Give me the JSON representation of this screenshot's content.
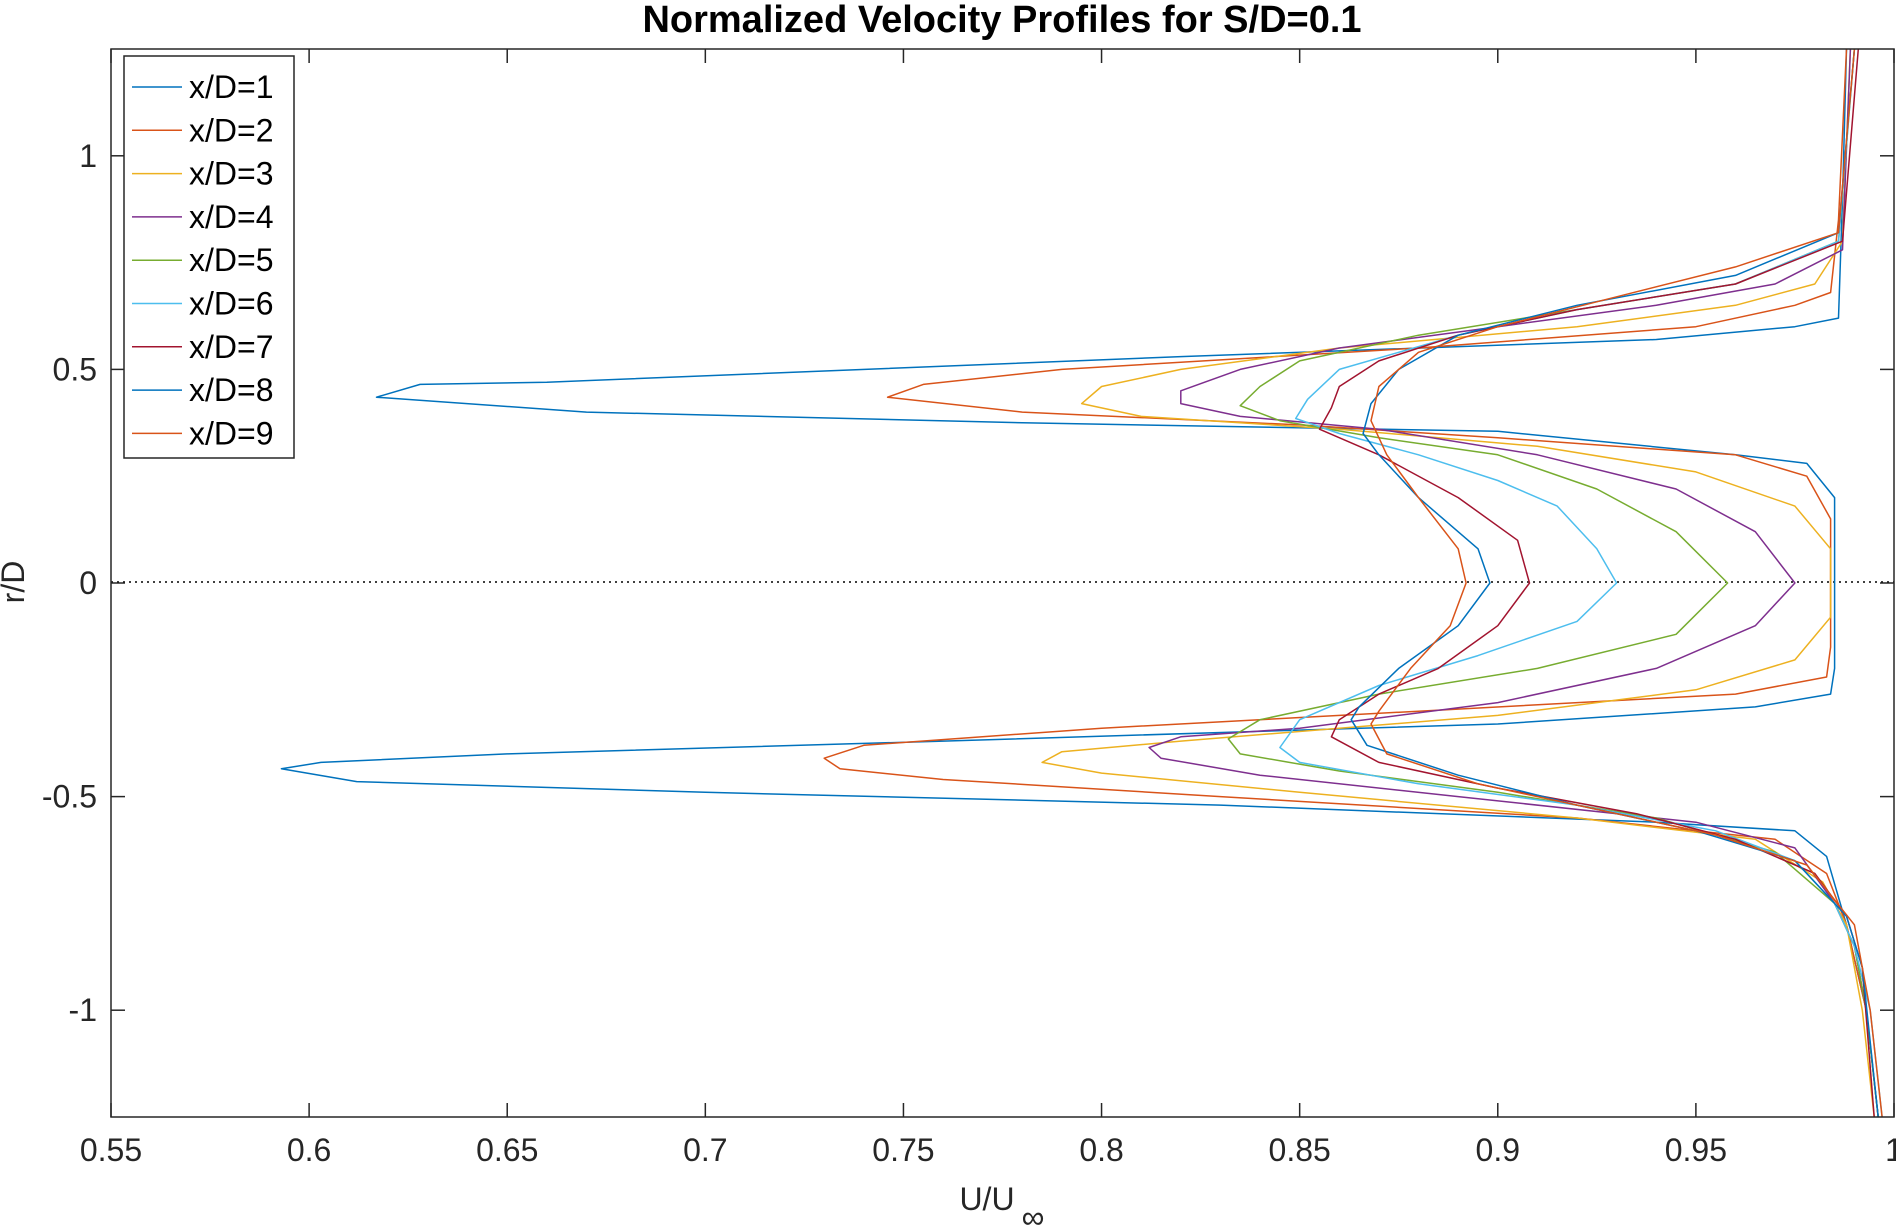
{
  "chart_data": {
    "type": "line",
    "title": "Normalized Velocity Profiles for S/D=0.1",
    "xlabel": "U/U",
    "xlabel_subscript": "∞",
    "ylabel": "r/D",
    "xlim": [
      0.55,
      1.0
    ],
    "ylim": [
      -1.25,
      1.25
    ],
    "xticks": [
      0.55,
      0.6,
      0.65,
      0.7,
      0.75,
      0.8,
      0.85,
      0.9,
      0.95,
      1
    ],
    "xtick_labels": [
      "0.55",
      "0.6",
      "0.65",
      "0.7",
      "0.75",
      "0.8",
      "0.85",
      "0.9",
      "0.95",
      "1"
    ],
    "yticks": [
      1,
      0.5,
      0,
      -0.5,
      -1
    ],
    "ytick_labels": [
      "1",
      "0.5",
      "0",
      "-0.5",
      "-1"
    ],
    "grid": false,
    "legend_position": "top-left",
    "reference_line": {
      "y": 0,
      "style": "dotted"
    },
    "series": [
      {
        "name": "x/D=1",
        "color": "#0072BD",
        "points": [
          [
            0.988,
            1.25
          ],
          [
            0.987,
            0.9
          ],
          [
            0.986,
            0.62
          ],
          [
            0.975,
            0.6
          ],
          [
            0.94,
            0.57
          ],
          [
            0.82,
            0.53
          ],
          [
            0.66,
            0.47
          ],
          [
            0.628,
            0.465
          ],
          [
            0.617,
            0.435
          ],
          [
            0.67,
            0.4
          ],
          [
            0.78,
            0.375
          ],
          [
            0.9,
            0.355
          ],
          [
            0.96,
            0.3
          ],
          [
            0.978,
            0.28
          ],
          [
            0.985,
            0.2
          ],
          [
            0.985,
            -0.2
          ],
          [
            0.984,
            -0.26
          ],
          [
            0.965,
            -0.29
          ],
          [
            0.9,
            -0.33
          ],
          [
            0.76,
            -0.37
          ],
          [
            0.65,
            -0.4
          ],
          [
            0.603,
            -0.42
          ],
          [
            0.593,
            -0.435
          ],
          [
            0.612,
            -0.465
          ],
          [
            0.7,
            -0.49
          ],
          [
            0.83,
            -0.52
          ],
          [
            0.94,
            -0.56
          ],
          [
            0.975,
            -0.58
          ],
          [
            0.983,
            -0.64
          ],
          [
            0.988,
            -0.8
          ],
          [
            0.993,
            -1.0
          ],
          [
            0.996,
            -1.25
          ]
        ]
      },
      {
        "name": "x/D=2",
        "color": "#D95319",
        "points": [
          [
            0.988,
            1.25
          ],
          [
            0.986,
            0.85
          ],
          [
            0.984,
            0.68
          ],
          [
            0.975,
            0.65
          ],
          [
            0.95,
            0.6
          ],
          [
            0.88,
            0.55
          ],
          [
            0.79,
            0.5
          ],
          [
            0.755,
            0.465
          ],
          [
            0.746,
            0.435
          ],
          [
            0.78,
            0.4
          ],
          [
            0.85,
            0.37
          ],
          [
            0.9,
            0.34
          ],
          [
            0.96,
            0.3
          ],
          [
            0.978,
            0.25
          ],
          [
            0.984,
            0.15
          ],
          [
            0.984,
            -0.15
          ],
          [
            0.983,
            -0.22
          ],
          [
            0.96,
            -0.26
          ],
          [
            0.88,
            -0.3
          ],
          [
            0.8,
            -0.34
          ],
          [
            0.74,
            -0.38
          ],
          [
            0.73,
            -0.41
          ],
          [
            0.734,
            -0.435
          ],
          [
            0.76,
            -0.46
          ],
          [
            0.83,
            -0.5
          ],
          [
            0.92,
            -0.55
          ],
          [
            0.97,
            -0.6
          ],
          [
            0.983,
            -0.68
          ],
          [
            0.988,
            -0.8
          ],
          [
            0.993,
            -1.0
          ],
          [
            0.996,
            -1.25
          ]
        ]
      },
      {
        "name": "x/D=3",
        "color": "#EDB120",
        "points": [
          [
            0.989,
            1.25
          ],
          [
            0.987,
            0.8
          ],
          [
            0.98,
            0.7
          ],
          [
            0.96,
            0.65
          ],
          [
            0.92,
            0.6
          ],
          [
            0.86,
            0.55
          ],
          [
            0.82,
            0.5
          ],
          [
            0.8,
            0.46
          ],
          [
            0.795,
            0.42
          ],
          [
            0.81,
            0.39
          ],
          [
            0.86,
            0.36
          ],
          [
            0.91,
            0.32
          ],
          [
            0.95,
            0.26
          ],
          [
            0.975,
            0.18
          ],
          [
            0.984,
            0.08
          ],
          [
            0.984,
            -0.08
          ],
          [
            0.975,
            -0.18
          ],
          [
            0.95,
            -0.25
          ],
          [
            0.9,
            -0.31
          ],
          [
            0.82,
            -0.37
          ],
          [
            0.79,
            -0.395
          ],
          [
            0.785,
            -0.42
          ],
          [
            0.8,
            -0.445
          ],
          [
            0.85,
            -0.49
          ],
          [
            0.92,
            -0.55
          ],
          [
            0.965,
            -0.6
          ],
          [
            0.982,
            -0.7
          ],
          [
            0.988,
            -0.8
          ],
          [
            0.992,
            -1.0
          ],
          [
            0.995,
            -1.25
          ]
        ]
      },
      {
        "name": "x/D=4",
        "color": "#7E2F8E",
        "points": [
          [
            0.989,
            1.25
          ],
          [
            0.987,
            0.78
          ],
          [
            0.97,
            0.7
          ],
          [
            0.94,
            0.65
          ],
          [
            0.9,
            0.6
          ],
          [
            0.86,
            0.55
          ],
          [
            0.835,
            0.5
          ],
          [
            0.82,
            0.45
          ],
          [
            0.82,
            0.42
          ],
          [
            0.835,
            0.39
          ],
          [
            0.87,
            0.36
          ],
          [
            0.91,
            0.3
          ],
          [
            0.945,
            0.22
          ],
          [
            0.965,
            0.12
          ],
          [
            0.975,
            0.0
          ],
          [
            0.965,
            -0.1
          ],
          [
            0.94,
            -0.2
          ],
          [
            0.9,
            -0.28
          ],
          [
            0.85,
            -0.34
          ],
          [
            0.82,
            -0.36
          ],
          [
            0.812,
            -0.385
          ],
          [
            0.815,
            -0.41
          ],
          [
            0.84,
            -0.45
          ],
          [
            0.89,
            -0.5
          ],
          [
            0.95,
            -0.56
          ],
          [
            0.975,
            -0.62
          ],
          [
            0.985,
            -0.75
          ],
          [
            0.99,
            -0.85
          ],
          [
            0.993,
            -1.0
          ],
          [
            0.996,
            -1.25
          ]
        ]
      },
      {
        "name": "x/D=5",
        "color": "#77AC30",
        "points": [
          [
            0.99,
            1.25
          ],
          [
            0.986,
            0.8
          ],
          [
            0.96,
            0.7
          ],
          [
            0.92,
            0.64
          ],
          [
            0.88,
            0.58
          ],
          [
            0.85,
            0.52
          ],
          [
            0.84,
            0.46
          ],
          [
            0.835,
            0.415
          ],
          [
            0.845,
            0.38
          ],
          [
            0.87,
            0.34
          ],
          [
            0.9,
            0.3
          ],
          [
            0.925,
            0.22
          ],
          [
            0.945,
            0.12
          ],
          [
            0.958,
            0.0
          ],
          [
            0.945,
            -0.12
          ],
          [
            0.91,
            -0.2
          ],
          [
            0.87,
            -0.26
          ],
          [
            0.84,
            -0.32
          ],
          [
            0.832,
            -0.365
          ],
          [
            0.835,
            -0.4
          ],
          [
            0.86,
            -0.44
          ],
          [
            0.9,
            -0.49
          ],
          [
            0.94,
            -0.55
          ],
          [
            0.97,
            -0.63
          ],
          [
            0.985,
            -0.75
          ],
          [
            0.99,
            -0.85
          ],
          [
            0.993,
            -1.0
          ],
          [
            0.996,
            -1.25
          ]
        ]
      },
      {
        "name": "x/D=6",
        "color": "#4DBEEE",
        "points": [
          [
            0.99,
            1.25
          ],
          [
            0.986,
            0.8
          ],
          [
            0.96,
            0.7
          ],
          [
            0.92,
            0.64
          ],
          [
            0.89,
            0.58
          ],
          [
            0.86,
            0.5
          ],
          [
            0.852,
            0.43
          ],
          [
            0.849,
            0.385
          ],
          [
            0.86,
            0.35
          ],
          [
            0.88,
            0.3
          ],
          [
            0.9,
            0.24
          ],
          [
            0.915,
            0.18
          ],
          [
            0.925,
            0.08
          ],
          [
            0.93,
            0.0
          ],
          [
            0.92,
            -0.09
          ],
          [
            0.895,
            -0.17
          ],
          [
            0.87,
            -0.24
          ],
          [
            0.85,
            -0.32
          ],
          [
            0.845,
            -0.385
          ],
          [
            0.85,
            -0.42
          ],
          [
            0.88,
            -0.47
          ],
          [
            0.92,
            -0.52
          ],
          [
            0.955,
            -0.58
          ],
          [
            0.975,
            -0.65
          ],
          [
            0.985,
            -0.75
          ],
          [
            0.99,
            -0.85
          ],
          [
            0.994,
            -1.0
          ],
          [
            0.997,
            -1.25
          ]
        ]
      },
      {
        "name": "x/D=7",
        "color": "#A2142F",
        "points": [
          [
            0.991,
            1.25
          ],
          [
            0.987,
            0.8
          ],
          [
            0.96,
            0.7
          ],
          [
            0.92,
            0.64
          ],
          [
            0.89,
            0.58
          ],
          [
            0.87,
            0.52
          ],
          [
            0.86,
            0.46
          ],
          [
            0.858,
            0.41
          ],
          [
            0.855,
            0.36
          ],
          [
            0.87,
            0.3
          ],
          [
            0.89,
            0.2
          ],
          [
            0.905,
            0.1
          ],
          [
            0.908,
            0.0
          ],
          [
            0.9,
            -0.1
          ],
          [
            0.885,
            -0.2
          ],
          [
            0.87,
            -0.26
          ],
          [
            0.86,
            -0.32
          ],
          [
            0.858,
            -0.36
          ],
          [
            0.87,
            -0.42
          ],
          [
            0.9,
            -0.48
          ],
          [
            0.935,
            -0.54
          ],
          [
            0.96,
            -0.6
          ],
          [
            0.98,
            -0.68
          ],
          [
            0.988,
            -0.78
          ],
          [
            0.992,
            -0.9
          ],
          [
            0.995,
            -1.25
          ]
        ]
      },
      {
        "name": "x/D=8",
        "color": "#0072BD",
        "points": [
          [
            0.99,
            1.25
          ],
          [
            0.986,
            0.82
          ],
          [
            0.96,
            0.72
          ],
          [
            0.92,
            0.65
          ],
          [
            0.89,
            0.58
          ],
          [
            0.875,
            0.5
          ],
          [
            0.868,
            0.42
          ],
          [
            0.866,
            0.35
          ],
          [
            0.87,
            0.3
          ],
          [
            0.88,
            0.2
          ],
          [
            0.895,
            0.08
          ],
          [
            0.898,
            0.0
          ],
          [
            0.89,
            -0.1
          ],
          [
            0.875,
            -0.2
          ],
          [
            0.865,
            -0.29
          ],
          [
            0.863,
            -0.32
          ],
          [
            0.867,
            -0.38
          ],
          [
            0.89,
            -0.45
          ],
          [
            0.92,
            -0.52
          ],
          [
            0.95,
            -0.58
          ],
          [
            0.975,
            -0.65
          ],
          [
            0.988,
            -0.78
          ],
          [
            0.992,
            -0.9
          ],
          [
            0.996,
            -1.25
          ]
        ]
      },
      {
        "name": "x/D=9",
        "color": "#D95319",
        "points": [
          [
            0.99,
            1.25
          ],
          [
            0.986,
            0.82
          ],
          [
            0.96,
            0.74
          ],
          [
            0.93,
            0.67
          ],
          [
            0.9,
            0.6
          ],
          [
            0.88,
            0.54
          ],
          [
            0.87,
            0.46
          ],
          [
            0.868,
            0.38
          ],
          [
            0.872,
            0.3
          ],
          [
            0.88,
            0.2
          ],
          [
            0.89,
            0.08
          ],
          [
            0.892,
            0.0
          ],
          [
            0.888,
            -0.1
          ],
          [
            0.878,
            -0.2
          ],
          [
            0.87,
            -0.3
          ],
          [
            0.868,
            -0.33
          ],
          [
            0.872,
            -0.4
          ],
          [
            0.895,
            -0.47
          ],
          [
            0.925,
            -0.53
          ],
          [
            0.955,
            -0.59
          ],
          [
            0.978,
            -0.66
          ],
          [
            0.99,
            -0.8
          ],
          [
            0.994,
            -1.0
          ],
          [
            0.997,
            -1.25
          ]
        ]
      }
    ]
  }
}
